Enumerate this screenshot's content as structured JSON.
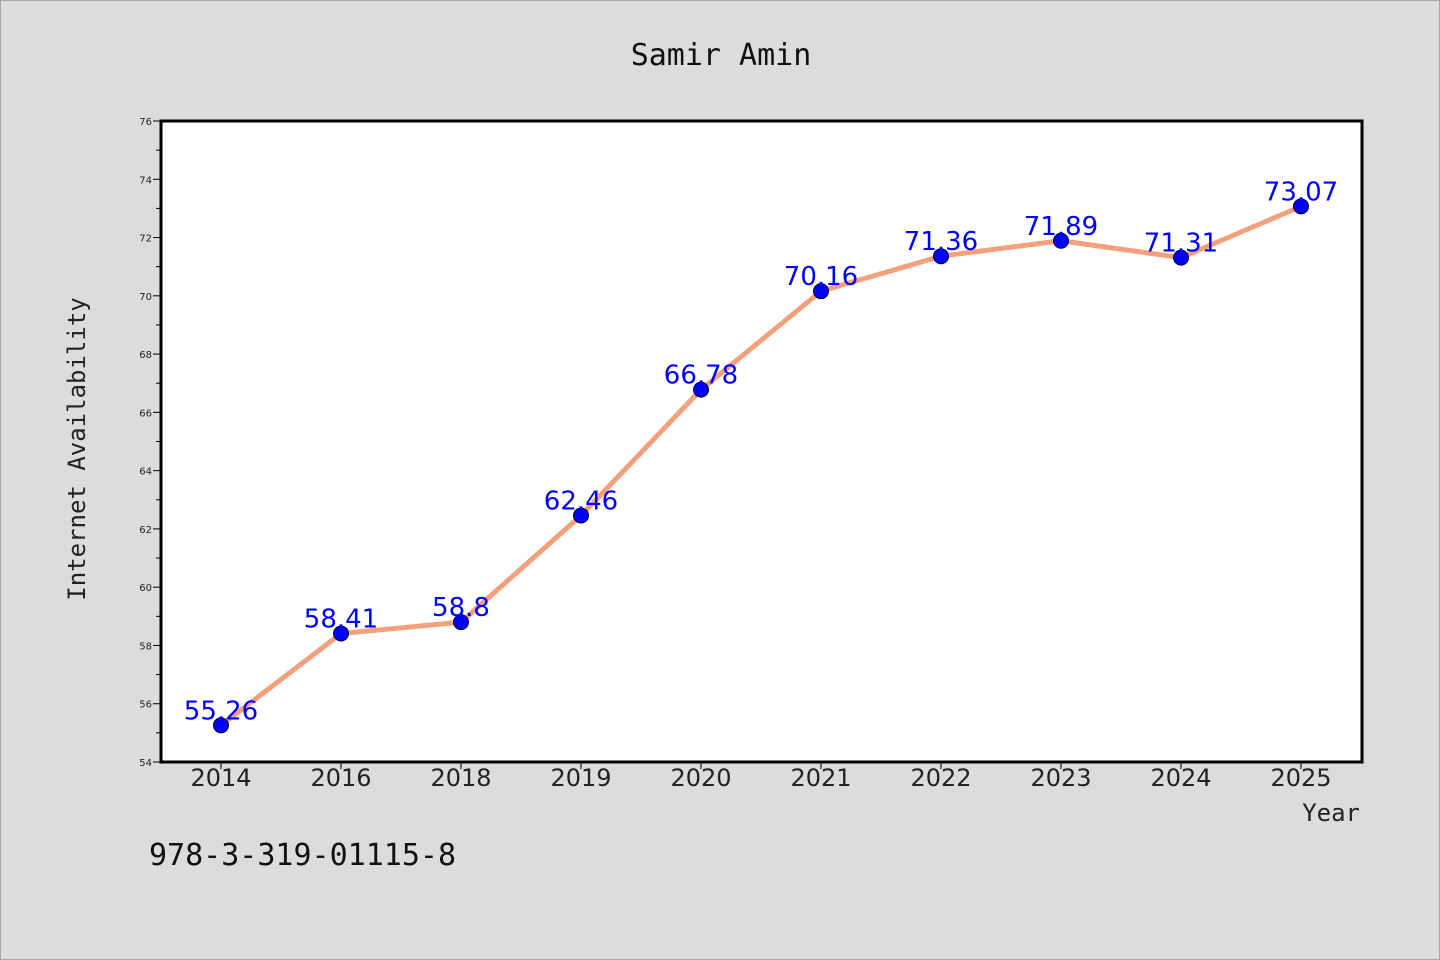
{
  "chart_data": {
    "type": "line",
    "title": "Samir Amin",
    "xlabel": "Year",
    "ylabel": "Internet Availability",
    "categories": [
      "2014",
      "2016",
      "2018",
      "2019",
      "2020",
      "2021",
      "2022",
      "2023",
      "2024",
      "2025"
    ],
    "series": [
      {
        "values": [
          55.26,
          58.41,
          58.8,
          62.46,
          66.78,
          70.16,
          71.36,
          71.89,
          71.31,
          73.07
        ],
        "labels": [
          "55.26",
          "58.41",
          "58.8",
          "62.46",
          "66.78",
          "70.16",
          "71.36",
          "71.89",
          "71.31",
          "73.07"
        ]
      }
    ],
    "ylim": [
      54,
      76
    ],
    "yticks": [
      "54",
      "56",
      "58",
      "60",
      "62",
      "64",
      "66",
      "68",
      "70",
      "72",
      "74",
      "76"
    ],
    "grid": false,
    "line_color": "#f5a07c",
    "marker_color": "#0000ff",
    "label_color": "#0000ff"
  },
  "footer": {
    "text": "978-3-319-01115-8"
  }
}
